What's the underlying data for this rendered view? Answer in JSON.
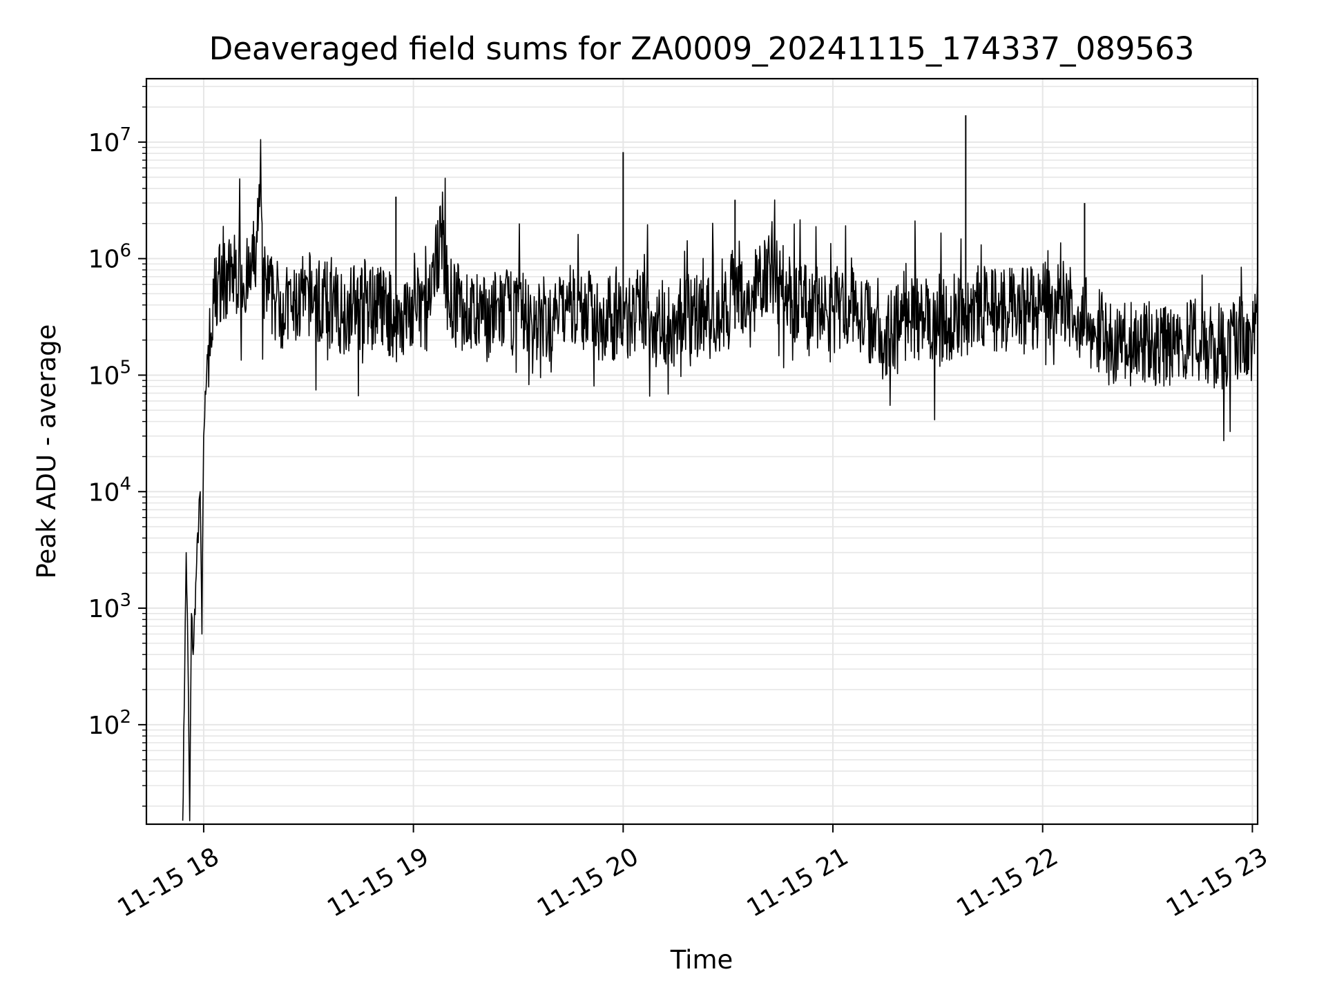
{
  "chart_data": {
    "type": "line",
    "title": "Deaveraged field sums for ZA0009_20241115_174337_089563",
    "xlabel": "Time",
    "ylabel": "Peak ADU - average",
    "yscale": "log",
    "ylim": [
      14,
      35000000
    ],
    "xlim": [
      "2024-11-15T17:43:37",
      "2024-11-15T23:01:30"
    ],
    "grid": "on",
    "line_color": "#000000",
    "grid_color": "#e6e6e6",
    "x_ticks": [
      {
        "value": "2024-11-15T18:00:00",
        "label": "11-15 18"
      },
      {
        "value": "2024-11-15T19:00:00",
        "label": "11-15 19"
      },
      {
        "value": "2024-11-15T20:00:00",
        "label": "11-15 20"
      },
      {
        "value": "2024-11-15T21:00:00",
        "label": "11-15 21"
      },
      {
        "value": "2024-11-15T22:00:00",
        "label": "11-15 22"
      },
      {
        "value": "2024-11-15T23:00:00",
        "label": "11-15 23"
      }
    ],
    "y_ticks": [
      {
        "value": 100,
        "base": "10",
        "exp": "2"
      },
      {
        "value": 1000,
        "base": "10",
        "exp": "3"
      },
      {
        "value": 10000,
        "base": "10",
        "exp": "4"
      },
      {
        "value": 100000,
        "base": "10",
        "exp": "5"
      },
      {
        "value": 1000000,
        "base": "10",
        "exp": "6"
      },
      {
        "value": 10000000,
        "base": "10",
        "exp": "7"
      }
    ],
    "series": [
      {
        "x": [
          "2024-11-15T17:54:00",
          "2024-11-15T17:55:00",
          "2024-11-15T17:55:30",
          "2024-11-15T17:56:00",
          "2024-11-15T17:56:30",
          "2024-11-15T17:57:00",
          "2024-11-15T17:58:00",
          "2024-11-15T17:59:00",
          "2024-11-15T17:59:30",
          "2024-11-15T18:00:00",
          "2024-11-15T18:01:00",
          "2024-11-15T18:02:00",
          "2024-11-15T18:03:00",
          "2024-11-15T18:04:00",
          "2024-11-15T18:05:00",
          "2024-11-15T18:07:00",
          "2024-11-15T18:10:00",
          "2024-11-15T18:13:00",
          "2024-11-15T18:15:00",
          "2024-11-15T18:16:00",
          "2024-11-15T18:17:00",
          "2024-11-15T18:20:00",
          "2024-11-15T18:25:00",
          "2024-11-15T18:30:00",
          "2024-11-15T18:35:00",
          "2024-11-15T18:40:00",
          "2024-11-15T18:45:00",
          "2024-11-15T18:50:00",
          "2024-11-15T18:55:00",
          "2024-11-15T19:00:00",
          "2024-11-15T19:05:00",
          "2024-11-15T19:08:00",
          "2024-11-15T19:10:00",
          "2024-11-15T19:15:00",
          "2024-11-15T19:20:00",
          "2024-11-15T19:25:00",
          "2024-11-15T19:30:00",
          "2024-11-15T19:35:00",
          "2024-11-15T19:40:00",
          "2024-11-15T19:45:00",
          "2024-11-15T19:50:00",
          "2024-11-15T19:55:00",
          "2024-11-15T20:00:00",
          "2024-11-15T20:05:00",
          "2024-11-15T20:10:00",
          "2024-11-15T20:15:00",
          "2024-11-15T20:20:00",
          "2024-11-15T20:25:00",
          "2024-11-15T20:30:00",
          "2024-11-15T20:32:00",
          "2024-11-15T20:35:00",
          "2024-11-15T20:40:00",
          "2024-11-15T20:45:00",
          "2024-11-15T20:50:00",
          "2024-11-15T20:55:00",
          "2024-11-15T21:00:00",
          "2024-11-15T21:05:00",
          "2024-11-15T21:10:00",
          "2024-11-15T21:15:00",
          "2024-11-15T21:20:00",
          "2024-11-15T21:25:00",
          "2024-11-15T21:30:00",
          "2024-11-15T21:35:00",
          "2024-11-15T21:38:00",
          "2024-11-15T21:40:00",
          "2024-11-15T21:45:00",
          "2024-11-15T21:50:00",
          "2024-11-15T21:55:00",
          "2024-11-15T22:00:00",
          "2024-11-15T22:05:00",
          "2024-11-15T22:10:00",
          "2024-11-15T22:12:00",
          "2024-11-15T22:15:00",
          "2024-11-15T22:20:00",
          "2024-11-15T22:25:00",
          "2024-11-15T22:30:00",
          "2024-11-15T22:35:00",
          "2024-11-15T22:40:00",
          "2024-11-15T22:45:00",
          "2024-11-15T22:50:00",
          "2024-11-15T22:55:00",
          "2024-11-15T23:00:00",
          "2024-11-15T23:01:30"
        ],
        "values": [
          15,
          3000,
          400,
          15,
          900,
          400,
          2500,
          10000,
          600,
          30000,
          150000,
          200000,
          450000,
          600000,
          700000,
          650000,
          800000,
          600000,
          1200000,
          2800000,
          600000,
          450000,
          350000,
          500000,
          400000,
          350000,
          450000,
          400000,
          300000,
          350000,
          400000,
          2000000,
          450000,
          350000,
          300000,
          350000,
          350000,
          300000,
          300000,
          400000,
          350000,
          300000,
          300000,
          350000,
          300000,
          250000,
          350000,
          300000,
          350000,
          1000000,
          300000,
          800000,
          600000,
          400000,
          350000,
          350000,
          400000,
          300000,
          200000,
          400000,
          300000,
          250000,
          350000,
          300000,
          400000,
          350000,
          350000,
          350000,
          400000,
          450000,
          350000,
          300000,
          250000,
          180000,
          180000,
          200000,
          170000,
          180000,
          200000,
          170000,
          200000,
          200000,
          700000
        ]
      }
    ],
    "spikes": [
      {
        "x": "2024-11-15T18:55:00",
        "value": 3400000
      },
      {
        "x": "2024-11-15T20:00:00",
        "value": 8200000
      },
      {
        "x": "2024-11-15T20:32:00",
        "value": 3200000
      },
      {
        "x": "2024-11-15T21:38:00",
        "value": 17000000
      },
      {
        "x": "2024-11-15T22:12:00",
        "value": 3000000
      }
    ]
  }
}
